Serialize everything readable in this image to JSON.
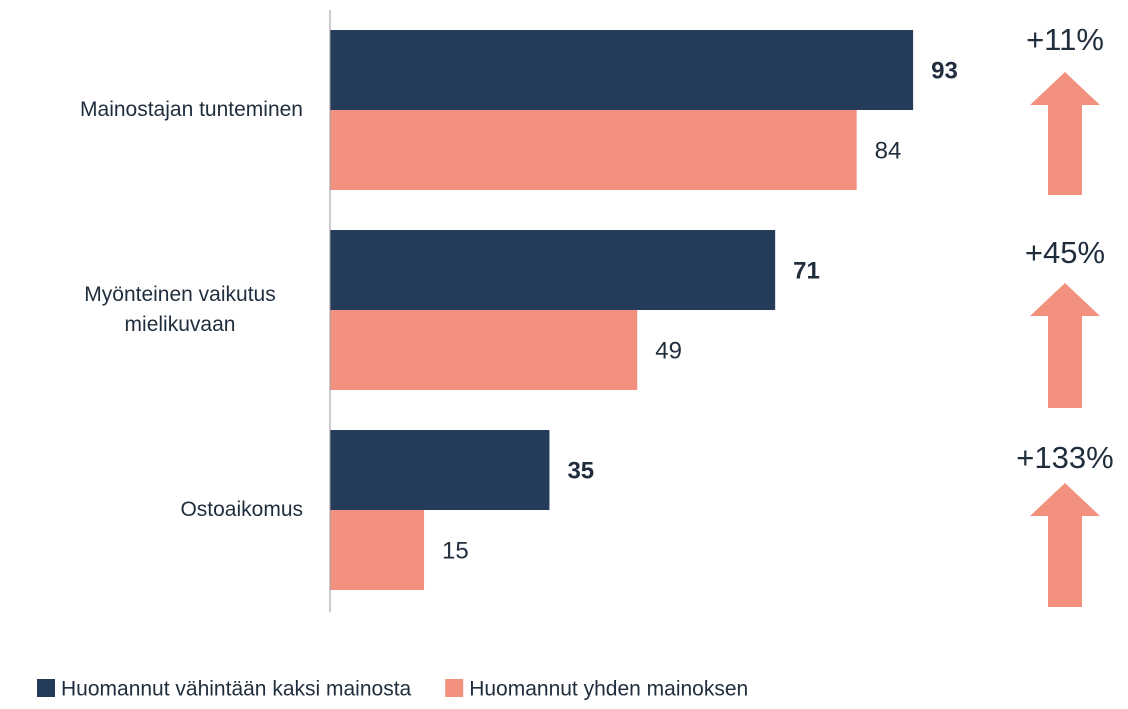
{
  "chart_data": {
    "type": "bar",
    "orientation": "horizontal",
    "categories": [
      "Mainostajan tunteminen",
      "Myönteinen vaikutus\nmielikuvaan",
      "Ostoaikomus"
    ],
    "series": [
      {
        "name": "Huomannut vähintään kaksi mainosta",
        "color": "#243c5a",
        "values": [
          93,
          71,
          35
        ]
      },
      {
        "name": "Huomannut yhden mainoksen",
        "color": "#f2917e",
        "values": [
          84,
          49,
          15
        ]
      }
    ],
    "xlim": [
      0,
      100
    ],
    "annotations": [
      "+11%",
      "+45%",
      "+133%"
    ],
    "annotation_color": "#f2917e",
    "legend": "bottom"
  }
}
